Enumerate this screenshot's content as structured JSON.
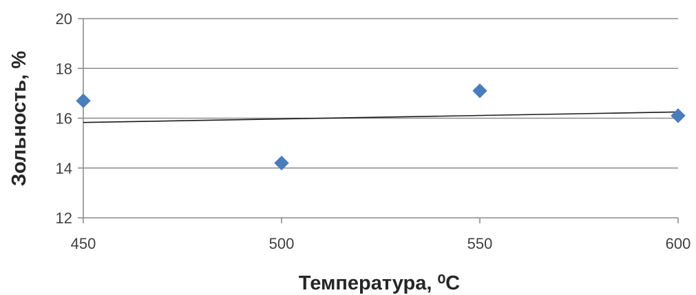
{
  "colors": {
    "grid": "#8c8c8c",
    "axis": "#8c8c8c",
    "marker": "#4a7ebb",
    "trendline": "#1a1a1a"
  },
  "chart_data": {
    "type": "scatter",
    "title": "",
    "xlabel": "Температура, ⁰С",
    "ylabel": "Зольность, %",
    "xlim": [
      450,
      600
    ],
    "ylim": [
      12,
      20
    ],
    "x_ticks": [
      "450",
      "500",
      "550",
      "600"
    ],
    "y_ticks": [
      "12",
      "14",
      "16",
      "18",
      "20"
    ],
    "grid": "horizontal",
    "legend": "none",
    "series": [
      {
        "marker": "diamond",
        "x": [
          450,
          500,
          550,
          600
        ],
        "y": [
          16.7,
          14.2,
          17.1,
          16.1
        ]
      }
    ],
    "trendline": {
      "type": "linear",
      "x": [
        450,
        600
      ],
      "y": [
        15.83,
        16.25
      ]
    }
  }
}
